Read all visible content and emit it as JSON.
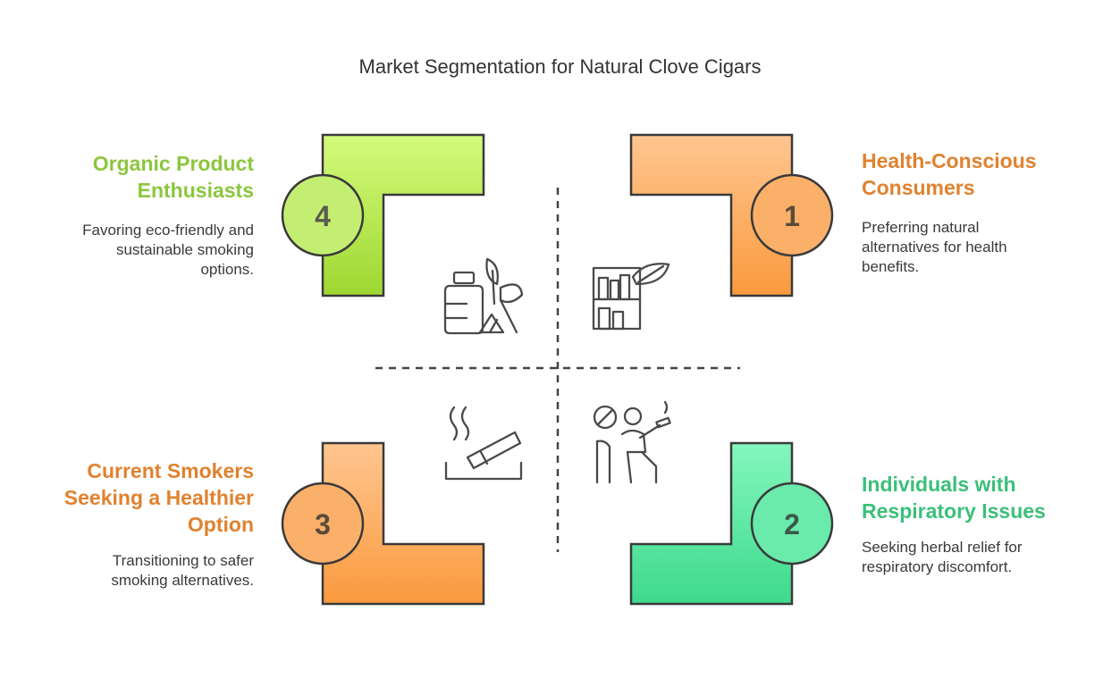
{
  "title": "Market Segmentation for Natural Clove Cigars",
  "colors": {
    "green": "#9fd63a",
    "orange": "#f5a04f",
    "teal": "#3fd48f",
    "green_text": "#8cc63e",
    "orange_text": "#e0822f",
    "teal_text": "#3bbf7a",
    "stroke": "#3a3a3a"
  },
  "segments": [
    {
      "number": "1",
      "title_lines": [
        "Health-Conscious",
        "Consumers"
      ],
      "description_lines": [
        "Preferring natural",
        "alternatives for health",
        "benefits."
      ],
      "icon": "bookshelf-leaf-icon"
    },
    {
      "number": "2",
      "title_lines": [
        "Individuals with",
        "Respiratory Issues"
      ],
      "description_lines": [
        "Seeking herbal relief for",
        "respiratory discomfort."
      ],
      "icon": "person-smoking-icon"
    },
    {
      "number": "3",
      "title_lines": [
        "Current Smokers",
        "Seeking a Healthier",
        "Option"
      ],
      "description_lines": [
        "Transitioning to safer",
        "smoking alternatives."
      ],
      "icon": "cigarette-ashtray-icon"
    },
    {
      "number": "4",
      "title_lines": [
        "Organic Product",
        "Enthusiasts"
      ],
      "description_lines": [
        "Favoring eco-friendly and",
        "sustainable smoking",
        "options."
      ],
      "icon": "eco-bottle-leaf-icon"
    }
  ]
}
